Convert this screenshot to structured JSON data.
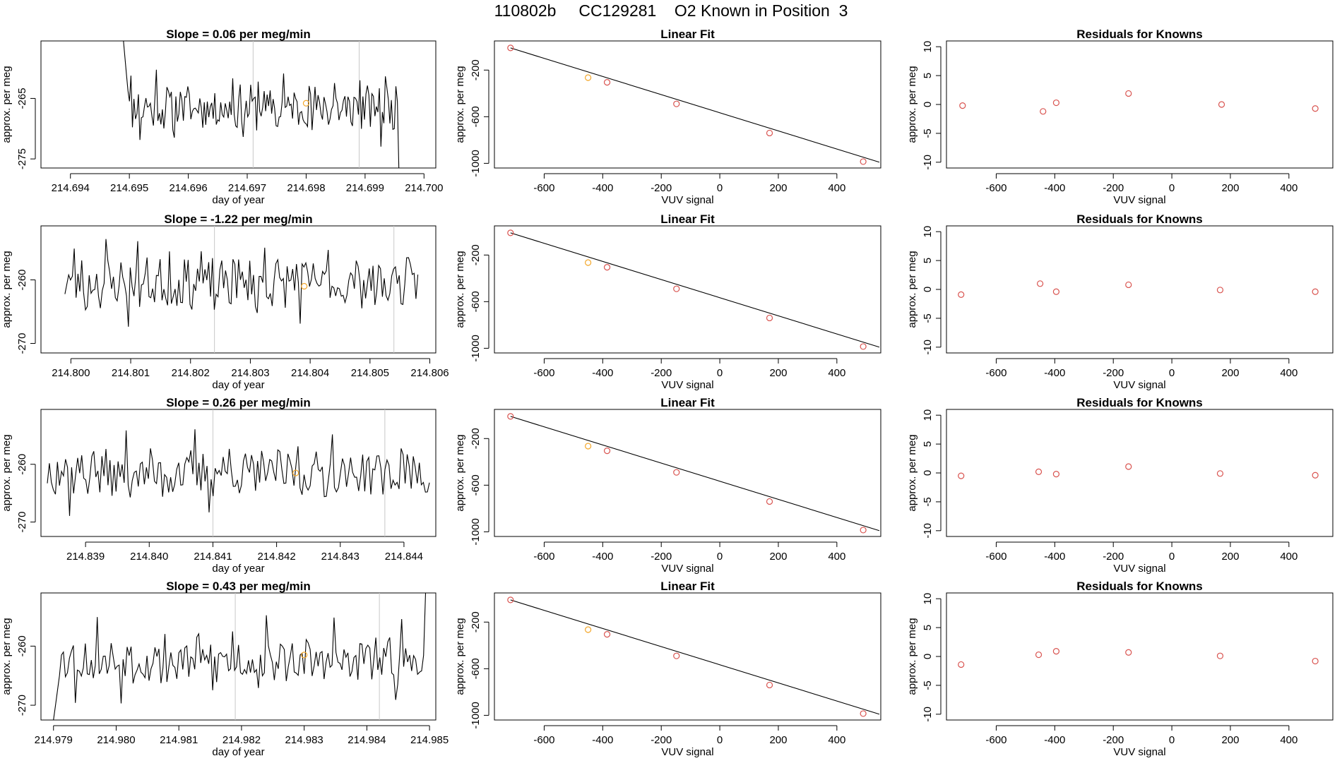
{
  "figure_title": "110802b     CC129281    O2 Known in Position  3",
  "colors": {
    "line": "#000000",
    "known_point": "#f4a72a",
    "residual_point": "#d9534f",
    "vline": "#c8c8c8",
    "axis": "#000000"
  },
  "chart_data": [
    {
      "type": "line",
      "row": 0,
      "col": 0,
      "title": "Slope =  0.06  per meg/min",
      "xlabel": "day of year",
      "ylabel": "approx. per meg",
      "xlim": [
        214.6935,
        214.7002
      ],
      "ylim": [
        -276.5,
        -255.5
      ],
      "xticks": [
        214.694,
        214.695,
        214.696,
        214.697,
        214.698,
        214.699,
        214.7
      ],
      "xtick_labels": [
        "214.694",
        "214.695",
        "214.696",
        "214.697",
        "214.698",
        "214.699",
        "214.700"
      ],
      "yticks": [
        -265,
        -275
      ],
      "ytick_labels": [
        "-265",
        "-275"
      ],
      "x_start": 214.6949,
      "x_end": 214.6997,
      "y_center": -266.5,
      "y_amp": 3.2,
      "seed": 11,
      "start_y": -255.5,
      "end_y": -276.5,
      "end_fraction": 0.97,
      "vlines": [
        214.6971,
        214.6989
      ],
      "known_point": {
        "x": 214.698,
        "y": -265.8
      }
    },
    {
      "type": "scatter_fit",
      "row": 0,
      "col": 1,
      "title": "Linear Fit",
      "xlabel": "VUV signal",
      "ylabel": "approx. per meg",
      "xlim": [
        -770,
        550
      ],
      "ylim": [
        -1040,
        50
      ],
      "xticks": [
        -600,
        -400,
        -200,
        0,
        200,
        400
      ],
      "xtick_labels": [
        "-600",
        "-400",
        "-200",
        "0",
        "200",
        "400"
      ],
      "yticks": [
        -200,
        -600,
        -1000
      ],
      "ytick_labels": [
        "-200",
        "-600",
        "-1000"
      ],
      "fit_line": {
        "x": [
          -715,
          545
        ],
        "y": [
          -10,
          -990
        ]
      },
      "points": [
        [
          -715,
          -10
        ],
        [
          -450,
          -265
        ],
        [
          -385,
          -305
        ],
        [
          -148,
          -490
        ],
        [
          170,
          -740
        ],
        [
          490,
          -985
        ]
      ],
      "known_index": 1
    },
    {
      "type": "scatter",
      "row": 0,
      "col": 2,
      "title": "Residuals for Knowns",
      "xlabel": "VUV signal",
      "ylabel": "approx. per meg",
      "xlim": [
        -770,
        550
      ],
      "ylim": [
        -11,
        11
      ],
      "xticks": [
        -600,
        -400,
        -200,
        0,
        200,
        400
      ],
      "xtick_labels": [
        "-600",
        "-400",
        "-200",
        "0",
        "200",
        "400"
      ],
      "yticks": [
        10,
        5,
        0,
        -5,
        -10
      ],
      "ytick_labels": [
        "10",
        "5",
        "0",
        "-5",
        "-10"
      ],
      "points": [
        [
          -715,
          -0.2
        ],
        [
          -440,
          -1.2
        ],
        [
          -395,
          0.3
        ],
        [
          -148,
          1.9
        ],
        [
          170,
          0.0
        ],
        [
          490,
          -0.7
        ]
      ]
    },
    {
      "type": "line",
      "row": 1,
      "col": 0,
      "title": "Slope =  -1.22  per meg/min",
      "xlabel": "day of year",
      "ylabel": "approx. per meg",
      "xlim": [
        214.7995,
        214.8061
      ],
      "ylim": [
        -271.5,
        -251.5
      ],
      "xticks": [
        214.8,
        214.801,
        214.802,
        214.803,
        214.804,
        214.805,
        214.806
      ],
      "xtick_labels": [
        "214.800",
        "214.801",
        "214.802",
        "214.803",
        "214.804",
        "214.805",
        "214.806"
      ],
      "yticks": [
        -260,
        -270
      ],
      "ytick_labels": [
        "-260",
        "-270"
      ],
      "x_start": 214.7999,
      "x_end": 214.8058,
      "y_center": -260.5,
      "y_amp": 3.4,
      "seed": 23,
      "vlines": [
        214.8024,
        214.8054
      ],
      "known_point": {
        "x": 214.8039,
        "y": -261.0
      }
    },
    {
      "type": "scatter_fit",
      "row": 1,
      "col": 1,
      "title": "Linear Fit",
      "xlabel": "VUV signal",
      "ylabel": "approx. per meg",
      "xlim": [
        -770,
        550
      ],
      "ylim": [
        -1040,
        50
      ],
      "xticks": [
        -600,
        -400,
        -200,
        0,
        200,
        400
      ],
      "xtick_labels": [
        "-600",
        "-400",
        "-200",
        "0",
        "200",
        "400"
      ],
      "yticks": [
        -200,
        -600,
        -1000
      ],
      "ytick_labels": [
        "-200",
        "-600",
        "-1000"
      ],
      "fit_line": {
        "x": [
          -715,
          545
        ],
        "y": [
          -10,
          -990
        ]
      },
      "points": [
        [
          -715,
          -10
        ],
        [
          -450,
          -265
        ],
        [
          -385,
          -305
        ],
        [
          -148,
          -490
        ],
        [
          170,
          -740
        ],
        [
          490,
          -985
        ]
      ],
      "known_index": 1
    },
    {
      "type": "scatter",
      "row": 1,
      "col": 2,
      "title": "Residuals for Knowns",
      "xlabel": "VUV signal",
      "ylabel": "approx. per meg",
      "xlim": [
        -770,
        550
      ],
      "ylim": [
        -11,
        11
      ],
      "xticks": [
        -600,
        -400,
        -200,
        0,
        200,
        400
      ],
      "xtick_labels": [
        "-600",
        "-400",
        "-200",
        "0",
        "200",
        "400"
      ],
      "yticks": [
        10,
        5,
        0,
        -5,
        -10
      ],
      "ytick_labels": [
        "10",
        "5",
        "0",
        "-5",
        "-10"
      ],
      "points": [
        [
          -720,
          -0.9
        ],
        [
          -450,
          1.0
        ],
        [
          -395,
          -0.4
        ],
        [
          -148,
          0.8
        ],
        [
          165,
          -0.1
        ],
        [
          490,
          -0.4
        ]
      ]
    },
    {
      "type": "line",
      "row": 2,
      "col": 0,
      "title": "Slope =  0.26  per meg/min",
      "xlabel": "day of year",
      "ylabel": "approx. per meg",
      "xlim": [
        214.8383,
        214.8445
      ],
      "ylim": [
        -272.5,
        -250.5
      ],
      "xticks": [
        214.839,
        214.84,
        214.841,
        214.842,
        214.843,
        214.844
      ],
      "xtick_labels": [
        "214.839",
        "214.840",
        "214.841",
        "214.842",
        "214.843",
        "214.844"
      ],
      "yticks": [
        -260,
        -270
      ],
      "ytick_labels": [
        "-260",
        "-270"
      ],
      "x_start": 214.8384,
      "x_end": 214.8444,
      "y_center": -261.5,
      "y_amp": 3.6,
      "seed": 37,
      "vlines": [
        214.841,
        214.8437
      ],
      "known_point": {
        "x": 214.8423,
        "y": -261.5
      }
    },
    {
      "type": "scatter_fit",
      "row": 2,
      "col": 1,
      "title": "Linear Fit",
      "xlabel": "VUV signal",
      "ylabel": "approx. per meg",
      "xlim": [
        -770,
        550
      ],
      "ylim": [
        -1040,
        50
      ],
      "xticks": [
        -600,
        -400,
        -200,
        0,
        200,
        400
      ],
      "xtick_labels": [
        "-600",
        "-400",
        "-200",
        "0",
        "200",
        "400"
      ],
      "yticks": [
        -200,
        -600,
        -1000
      ],
      "ytick_labels": [
        "-200",
        "-600",
        "-1000"
      ],
      "fit_line": {
        "x": [
          -715,
          545
        ],
        "y": [
          -10,
          -990
        ]
      },
      "points": [
        [
          -715,
          -10
        ],
        [
          -450,
          -265
        ],
        [
          -385,
          -305
        ],
        [
          -148,
          -490
        ],
        [
          170,
          -740
        ],
        [
          490,
          -985
        ]
      ],
      "known_index": 1
    },
    {
      "type": "scatter",
      "row": 2,
      "col": 2,
      "title": "Residuals for Knowns",
      "xlabel": "VUV signal",
      "ylabel": "approx. per meg",
      "xlim": [
        -770,
        550
      ],
      "ylim": [
        -11,
        11
      ],
      "xticks": [
        -600,
        -400,
        -200,
        0,
        200,
        400
      ],
      "xtick_labels": [
        "-600",
        "-400",
        "-200",
        "0",
        "200",
        "400"
      ],
      "yticks": [
        10,
        5,
        0,
        -5,
        -10
      ],
      "ytick_labels": [
        "10",
        "5",
        "0",
        "-5",
        "-10"
      ],
      "points": [
        [
          -720,
          -0.5
        ],
        [
          -455,
          0.2
        ],
        [
          -395,
          -0.2
        ],
        [
          -148,
          1.1
        ],
        [
          165,
          -0.1
        ],
        [
          490,
          -0.4
        ]
      ]
    },
    {
      "type": "line",
      "row": 3,
      "col": 0,
      "title": "Slope =  0.43  per meg/min",
      "xlabel": "day of year",
      "ylabel": "approx. per meg",
      "xlim": [
        214.9788,
        214.9851
      ],
      "ylim": [
        -272.5,
        -251.0
      ],
      "xticks": [
        214.979,
        214.98,
        214.981,
        214.982,
        214.983,
        214.984,
        214.985
      ],
      "xtick_labels": [
        "214.979",
        "214.980",
        "214.981",
        "214.982",
        "214.983",
        "214.984",
        "214.985"
      ],
      "yticks": [
        -260,
        -270
      ],
      "ytick_labels": [
        "-260",
        "-270"
      ],
      "x_start": 214.979,
      "x_end": 214.985,
      "y_center": -262.5,
      "y_amp": 3.3,
      "seed": 53,
      "start_y": -272.5,
      "end_y": -251.0,
      "end_fraction": 0.985,
      "vlines": [
        214.9819,
        214.9842
      ],
      "known_point": {
        "x": 214.983,
        "y": -261.5
      }
    },
    {
      "type": "scatter_fit",
      "row": 3,
      "col": 1,
      "title": "Linear Fit",
      "xlabel": "VUV signal",
      "ylabel": "approx. per meg",
      "xlim": [
        -770,
        550
      ],
      "ylim": [
        -1040,
        50
      ],
      "xticks": [
        -600,
        -400,
        -200,
        0,
        200,
        400
      ],
      "xtick_labels": [
        "-600",
        "-400",
        "-200",
        "0",
        "200",
        "400"
      ],
      "yticks": [
        -200,
        -600,
        -1000
      ],
      "ytick_labels": [
        "-200",
        "-600",
        "-1000"
      ],
      "fit_line": {
        "x": [
          -715,
          545
        ],
        "y": [
          -10,
          -990
        ]
      },
      "points": [
        [
          -715,
          -10
        ],
        [
          -450,
          -265
        ],
        [
          -385,
          -305
        ],
        [
          -148,
          -490
        ],
        [
          170,
          -740
        ],
        [
          490,
          -985
        ]
      ],
      "known_index": 1
    },
    {
      "type": "scatter",
      "row": 3,
      "col": 2,
      "title": "Residuals for Knowns",
      "xlabel": "VUV signal",
      "ylabel": "approx. per meg",
      "xlim": [
        -770,
        550
      ],
      "ylim": [
        -11,
        11
      ],
      "xticks": [
        -600,
        -400,
        -200,
        0,
        200,
        400
      ],
      "xtick_labels": [
        "-600",
        "-400",
        "-200",
        "0",
        "200",
        "400"
      ],
      "yticks": [
        10,
        5,
        0,
        -5,
        -10
      ],
      "ytick_labels": [
        "10",
        "5",
        "0",
        "-5",
        "-10"
      ],
      "points": [
        [
          -720,
          -1.4
        ],
        [
          -455,
          0.3
        ],
        [
          -395,
          0.9
        ],
        [
          -148,
          0.7
        ],
        [
          165,
          0.1
        ],
        [
          490,
          -0.8
        ]
      ]
    }
  ]
}
